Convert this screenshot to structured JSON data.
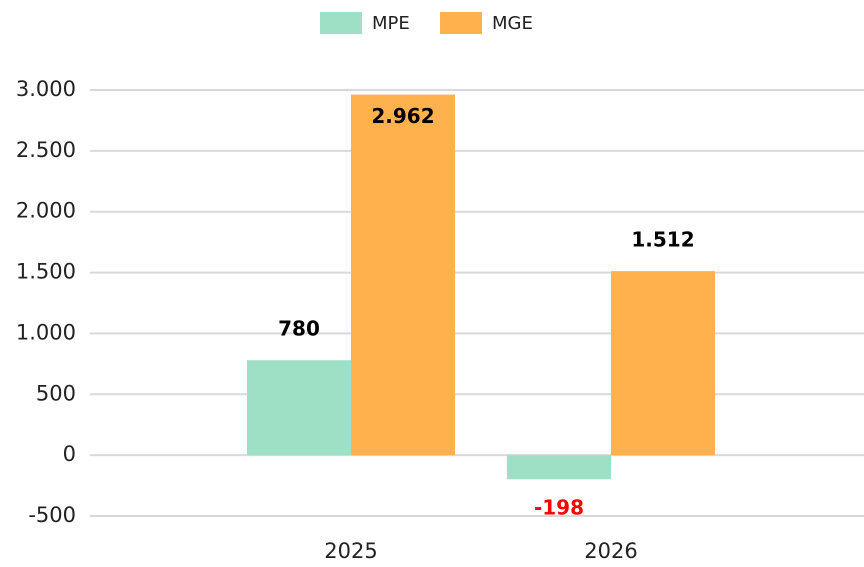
{
  "chart_data": {
    "type": "bar",
    "categories": [
      "2025",
      "2026"
    ],
    "series": [
      {
        "name": "MPE",
        "color": "#9ee0c5",
        "values": [
          780,
          -198
        ],
        "value_labels": [
          "780",
          "-198"
        ]
      },
      {
        "name": "MGE",
        "color": "#ffb14e",
        "values": [
          2962,
          1512
        ],
        "value_labels": [
          "2.962",
          "1.512"
        ]
      }
    ],
    "negative_label_color": "#ff0000",
    "ylim": [
      -500,
      3000
    ],
    "yticks": [
      -500,
      0,
      500,
      {
        "value": 1000,
        "label": "1.000"
      },
      {
        "value": 1500,
        "label": "1.500"
      },
      {
        "value": 2000,
        "label": "2.000"
      },
      {
        "value": 2500,
        "label": "2.500"
      },
      {
        "value": 3000,
        "label": "3.000"
      }
    ],
    "grid": true,
    "legend": "top"
  }
}
